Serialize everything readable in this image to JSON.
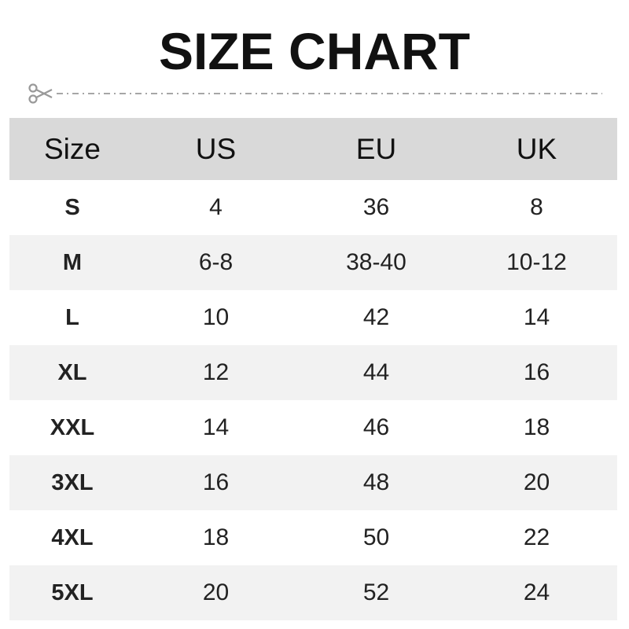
{
  "title": "SIZE CHART",
  "icons": {
    "cut_line": "scissors-icon"
  },
  "colors": {
    "header_bg": "#d9d9d9",
    "alt_row_bg": "#f2f2f2",
    "dash": "#a6a6a6"
  },
  "table": {
    "headers": [
      "Size",
      "US",
      "EU",
      "UK"
    ],
    "rows": [
      [
        "S",
        "4",
        "36",
        "8"
      ],
      [
        "M",
        "6-8",
        "38-40",
        "10-12"
      ],
      [
        "L",
        "10",
        "42",
        "14"
      ],
      [
        "XL",
        "12",
        "44",
        "16"
      ],
      [
        "XXL",
        "14",
        "46",
        "18"
      ],
      [
        "3XL",
        "16",
        "48",
        "20"
      ],
      [
        "4XL",
        "18",
        "50",
        "22"
      ],
      [
        "5XL",
        "20",
        "52",
        "24"
      ]
    ]
  }
}
